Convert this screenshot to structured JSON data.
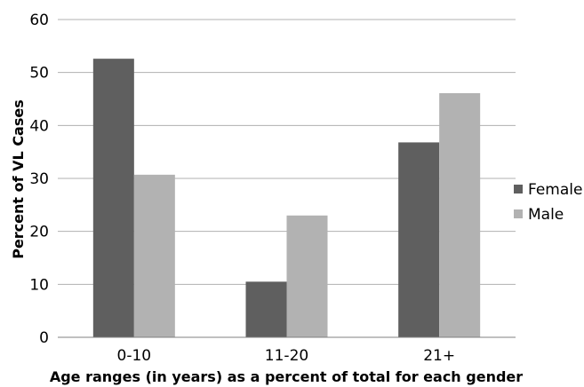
{
  "chart_data": {
    "type": "bar",
    "title": "",
    "xlabel": "Age ranges (in years) as a percent of total for each gender",
    "ylabel": "Percent of VL Cases",
    "categories": [
      "0-10",
      "11-20",
      "21+"
    ],
    "ylim": [
      0,
      60
    ],
    "yticks": [
      "0",
      "10",
      "20",
      "30",
      "40",
      "50",
      "60"
    ],
    "grid": true,
    "legend_position": "right",
    "series": [
      {
        "name": "Female",
        "values": [
          52.6,
          10.5,
          36.8
        ],
        "color": "#5f5f5f"
      },
      {
        "name": "Male",
        "values": [
          30.7,
          23.0,
          46.1
        ],
        "color": "#b2b2b2"
      }
    ]
  }
}
